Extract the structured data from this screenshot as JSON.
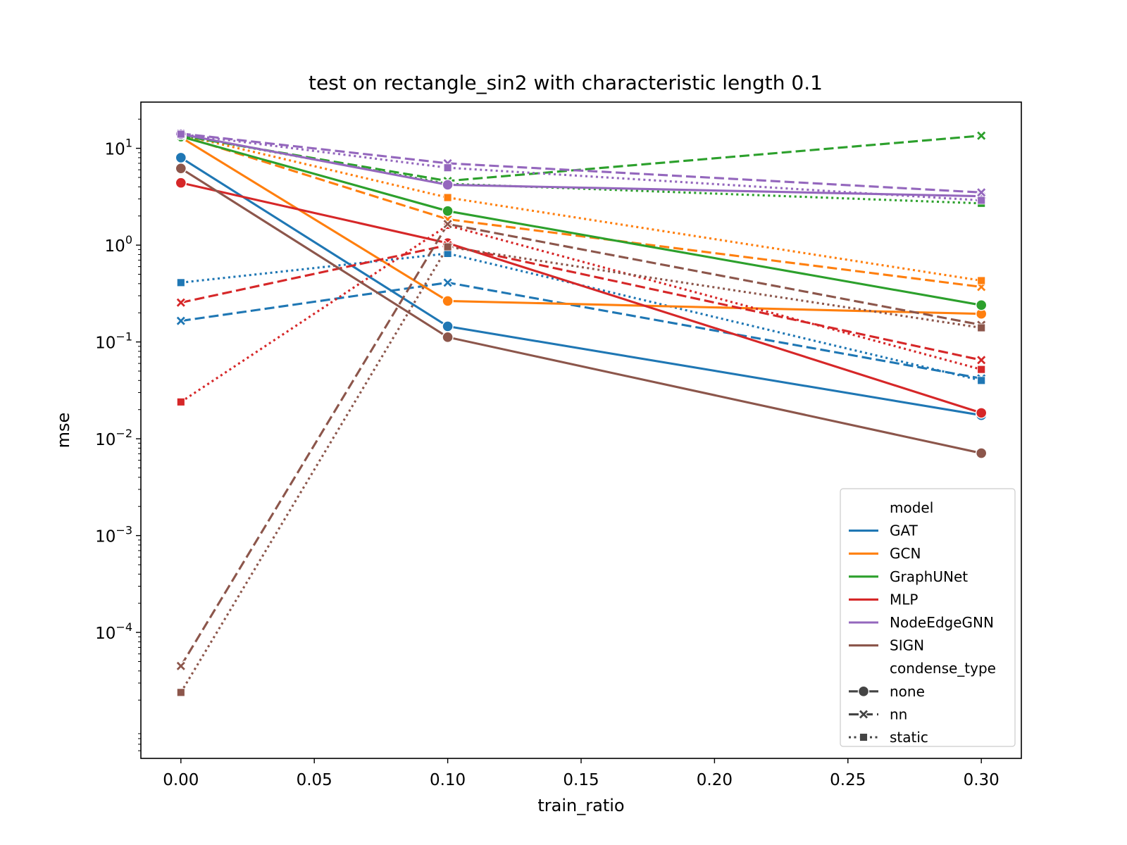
{
  "chart_data": {
    "type": "line",
    "title": "test on rectangle_sin2 with characteristic length 0.1",
    "xlabel": "train_ratio",
    "ylabel": "mse",
    "yscale": "log",
    "xlim": [
      -0.015,
      0.315
    ],
    "ylim": [
      5e-06,
      30
    ],
    "x": [
      0.0,
      0.1,
      0.3
    ],
    "x_ticks": [
      0.0,
      0.05,
      0.1,
      0.15,
      0.2,
      0.25,
      0.3
    ],
    "x_tick_labels": [
      "0.00",
      "0.05",
      "0.10",
      "0.15",
      "0.20",
      "0.25",
      "0.30"
    ],
    "y_ticks": [
      {
        "value": 10,
        "base": "10",
        "exp": "1"
      },
      {
        "value": 1,
        "base": "10",
        "exp": "0"
      },
      {
        "value": 0.1,
        "base": "10",
        "exp": "−1"
      },
      {
        "value": 0.01,
        "base": "10",
        "exp": "−2"
      },
      {
        "value": 0.001,
        "base": "10",
        "exp": "−3"
      },
      {
        "value": 0.0001,
        "base": "10",
        "exp": "−4"
      }
    ],
    "models": [
      {
        "name": "GAT",
        "color": "#1f77b4"
      },
      {
        "name": "GCN",
        "color": "#ff7f0e"
      },
      {
        "name": "GraphUNet",
        "color": "#2ca02c"
      },
      {
        "name": "MLP",
        "color": "#d62728"
      },
      {
        "name": "NodeEdgeGNN",
        "color": "#9467bd"
      },
      {
        "name": "SIGN",
        "color": "#8c564b"
      }
    ],
    "condense_types": [
      {
        "name": "none",
        "dash": "solid",
        "marker": "circle"
      },
      {
        "name": "nn",
        "dash": "dashed",
        "marker": "x"
      },
      {
        "name": "static",
        "dash": "dotted",
        "marker": "square"
      }
    ],
    "series": [
      {
        "model": "GAT",
        "condense_type": "none",
        "values": [
          8.0,
          0.145,
          0.0175
        ]
      },
      {
        "model": "GAT",
        "condense_type": "nn",
        "values": [
          0.165,
          0.41,
          0.042
        ]
      },
      {
        "model": "GAT",
        "condense_type": "static",
        "values": [
          0.41,
          0.82,
          0.04
        ]
      },
      {
        "model": "GCN",
        "condense_type": "none",
        "values": [
          13.0,
          0.265,
          0.195
        ]
      },
      {
        "model": "GCN",
        "condense_type": "nn",
        "values": [
          13.5,
          1.85,
          0.37
        ]
      },
      {
        "model": "GCN",
        "condense_type": "static",
        "values": [
          13.8,
          3.1,
          0.43
        ]
      },
      {
        "model": "GraphUNet",
        "condense_type": "none",
        "values": [
          13.2,
          2.25,
          0.24
        ]
      },
      {
        "model": "GraphUNet",
        "condense_type": "nn",
        "values": [
          13.5,
          4.6,
          13.5
        ]
      },
      {
        "model": "GraphUNet",
        "condense_type": "static",
        "values": [
          13.7,
          4.3,
          2.7
        ]
      },
      {
        "model": "MLP",
        "condense_type": "none",
        "values": [
          4.4,
          1.05,
          0.0185
        ]
      },
      {
        "model": "MLP",
        "condense_type": "nn",
        "values": [
          0.255,
          1.0,
          0.065
        ]
      },
      {
        "model": "MLP",
        "condense_type": "static",
        "values": [
          0.024,
          1.6,
          0.052
        ]
      },
      {
        "model": "NodeEdgeGNN",
        "condense_type": "none",
        "values": [
          14.0,
          4.2,
          3.2
        ]
      },
      {
        "model": "NodeEdgeGNN",
        "condense_type": "nn",
        "values": [
          14.2,
          7.0,
          3.5
        ]
      },
      {
        "model": "NodeEdgeGNN",
        "condense_type": "static",
        "values": [
          14.0,
          6.3,
          2.9
        ]
      },
      {
        "model": "SIGN",
        "condense_type": "none",
        "values": [
          6.2,
          0.112,
          0.0071
        ]
      },
      {
        "model": "SIGN",
        "condense_type": "nn",
        "values": [
          4.5e-05,
          1.65,
          0.15
        ]
      },
      {
        "model": "SIGN",
        "condense_type": "static",
        "values": [
          2.4e-05,
          0.96,
          0.14
        ]
      }
    ],
    "legend": {
      "placement": "lower-right",
      "model_header": "model",
      "condense_header": "condense_type"
    }
  }
}
